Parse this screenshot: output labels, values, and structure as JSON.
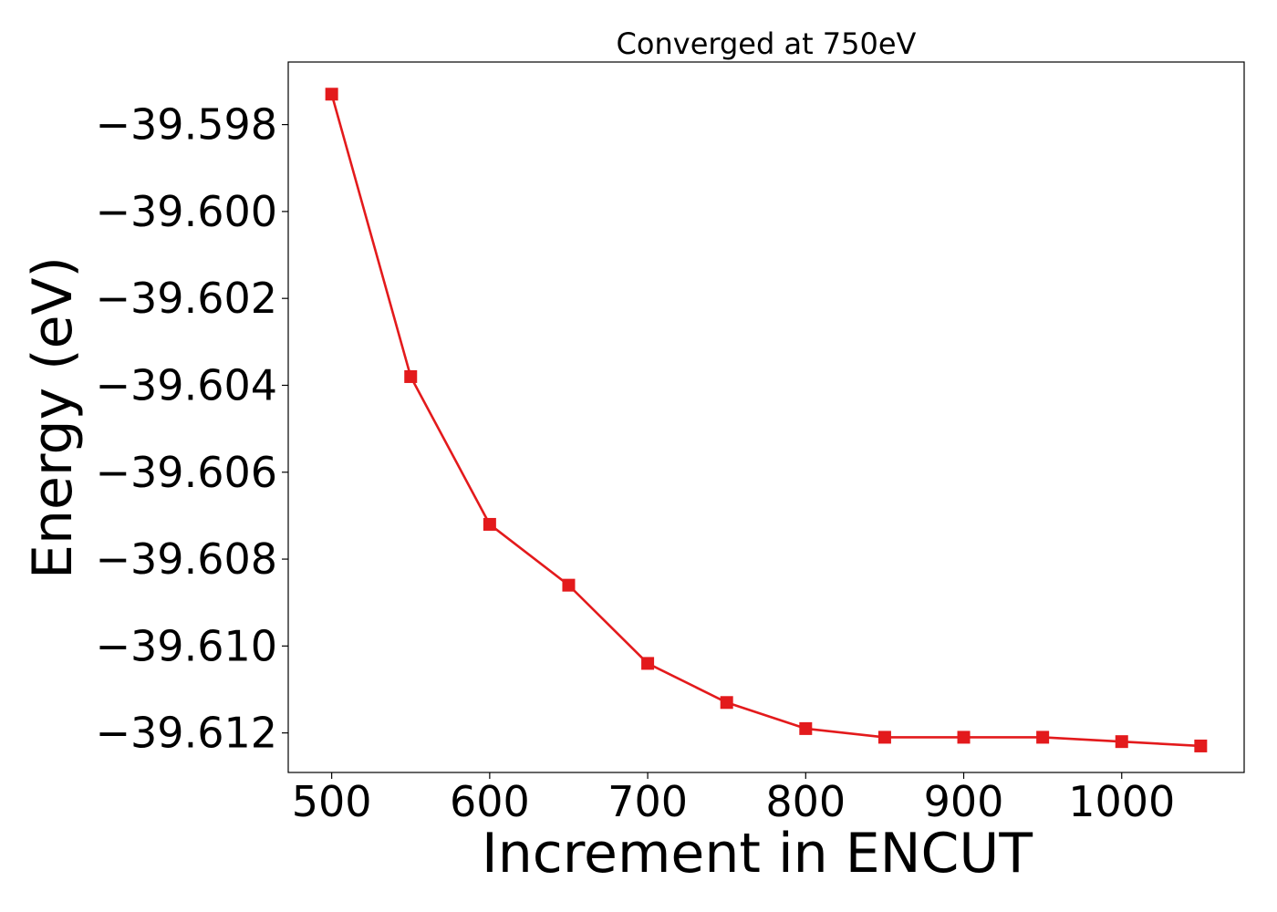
{
  "chart_data": {
    "type": "line",
    "title": "Converged at 750eV",
    "xlabel": "Increment in ENCUT",
    "ylabel": "Energy (eV)",
    "x": [
      500,
      550,
      600,
      650,
      700,
      750,
      800,
      850,
      900,
      950,
      1000,
      1050
    ],
    "series": [
      {
        "values": [
          -39.5973,
          -39.6038,
          -39.6072,
          -39.6086,
          -39.6104,
          -39.6113,
          -39.6119,
          -39.6121,
          -39.6121,
          -39.6121,
          -39.6122,
          -39.6123
        ],
        "color": "#e31a1c",
        "marker": "square"
      }
    ],
    "xlim": [
      472.5,
      1077.5
    ],
    "ylim": [
      -39.61291,
      -39.59656
    ],
    "xticks": [
      500,
      600,
      700,
      800,
      900,
      1000
    ],
    "xtick_labels": [
      "500",
      "600",
      "700",
      "800",
      "900",
      "1000"
    ],
    "yticks": [
      -39.598,
      -39.6,
      -39.602,
      -39.604,
      -39.606,
      -39.608,
      -39.61,
      -39.612
    ],
    "ytick_labels": [
      "−39.598",
      "−39.600",
      "−39.602",
      "−39.604",
      "−39.606",
      "−39.608",
      "−39.610",
      "−39.612"
    ],
    "grid": false,
    "legend": "none"
  }
}
